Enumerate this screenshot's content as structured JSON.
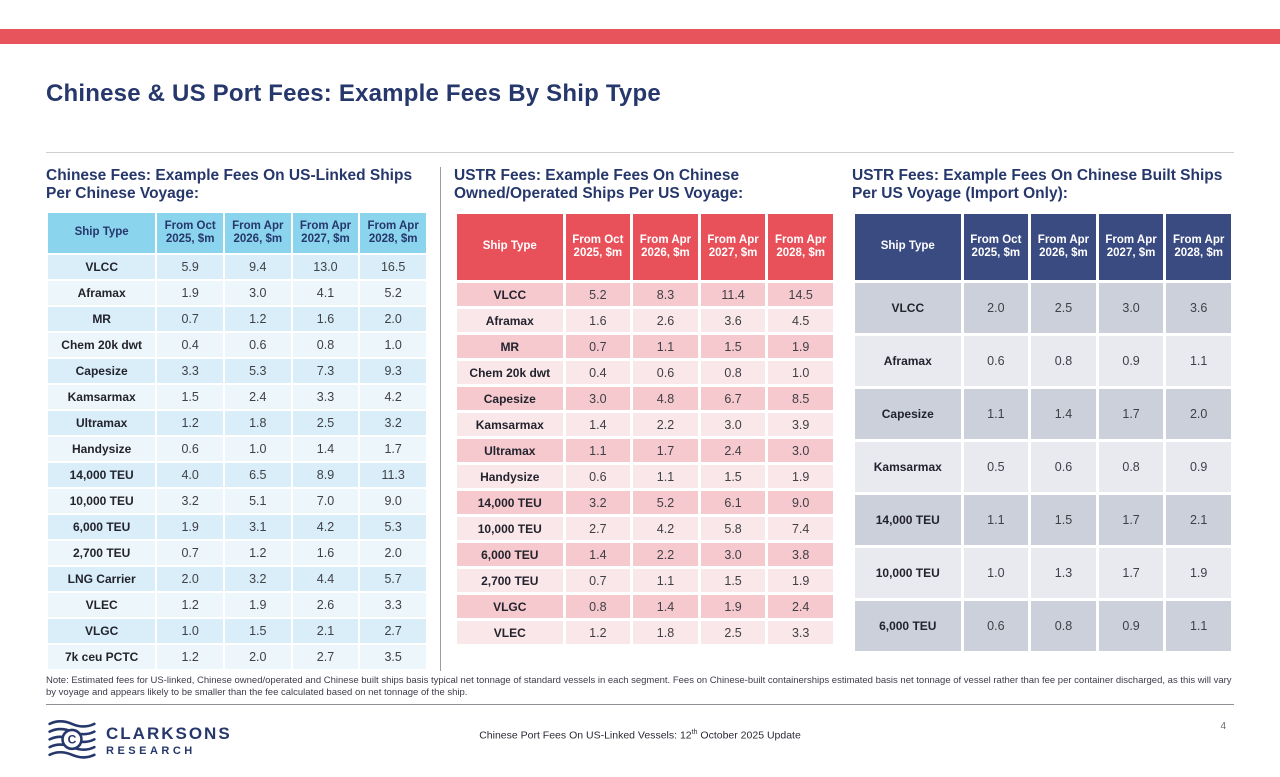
{
  "page": {
    "title": "Chinese & US Port Fees: Example Fees By Ship Type",
    "page_number": "4",
    "note": "Note: Estimated fees for US-linked, Chinese owned/operated and Chinese built ships basis typical net tonnage of standard vessels in each segment. Fees on Chinese-built containerships estimated basis net tonnage of vessel rather than fee per container discharged, as this will vary by voyage and appears likely to be smaller than the fee calculated based on net tonnage of the ship."
  },
  "colors": {
    "accent_red": "#E8545B",
    "navy": "#26376B",
    "table1_header": "#8BD4EE",
    "table1_row": "#D9EEF8",
    "table1_row_alt": "#EDF6FB",
    "table2_header": "#E8515A",
    "table2_row": "#F5C9CE",
    "table2_row_alt": "#FAE7E9",
    "table3_header": "#3A4B82",
    "table3_row": "#CBD0DB",
    "table3_row_alt": "#E8EAF0"
  },
  "tables": [
    {
      "title": "Chinese Fees: Example Fees On US-Linked Ships Per Chinese Voyage:",
      "theme": "blue",
      "columns": [
        "Ship Type",
        "From Oct 2025, $m",
        "From Apr 2026, $m",
        "From Apr 2027, $m",
        "From Apr 2028, $m"
      ],
      "rows": [
        {
          "ship": "VLCC",
          "values": [
            "5.9",
            "9.4",
            "13.0",
            "16.5"
          ]
        },
        {
          "ship": "Aframax",
          "values": [
            "1.9",
            "3.0",
            "4.1",
            "5.2"
          ]
        },
        {
          "ship": "MR",
          "values": [
            "0.7",
            "1.2",
            "1.6",
            "2.0"
          ]
        },
        {
          "ship": "Chem 20k dwt",
          "values": [
            "0.4",
            "0.6",
            "0.8",
            "1.0"
          ]
        },
        {
          "ship": "Capesize",
          "values": [
            "3.3",
            "5.3",
            "7.3",
            "9.3"
          ]
        },
        {
          "ship": "Kamsarmax",
          "values": [
            "1.5",
            "2.4",
            "3.3",
            "4.2"
          ]
        },
        {
          "ship": "Ultramax",
          "values": [
            "1.2",
            "1.8",
            "2.5",
            "3.2"
          ]
        },
        {
          "ship": "Handysize",
          "values": [
            "0.6",
            "1.0",
            "1.4",
            "1.7"
          ]
        },
        {
          "ship": "14,000 TEU",
          "values": [
            "4.0",
            "6.5",
            "8.9",
            "11.3"
          ]
        },
        {
          "ship": "10,000 TEU",
          "values": [
            "3.2",
            "5.1",
            "7.0",
            "9.0"
          ]
        },
        {
          "ship": "6,000 TEU",
          "values": [
            "1.9",
            "3.1",
            "4.2",
            "5.3"
          ]
        },
        {
          "ship": "2,700 TEU",
          "values": [
            "0.7",
            "1.2",
            "1.6",
            "2.0"
          ]
        },
        {
          "ship": "LNG Carrier",
          "values": [
            "2.0",
            "3.2",
            "4.4",
            "5.7"
          ]
        },
        {
          "ship": "VLEC",
          "values": [
            "1.2",
            "1.9",
            "2.6",
            "3.3"
          ]
        },
        {
          "ship": "VLGC",
          "values": [
            "1.0",
            "1.5",
            "2.1",
            "2.7"
          ]
        },
        {
          "ship": "7k ceu PCTC",
          "values": [
            "1.2",
            "2.0",
            "2.7",
            "3.5"
          ]
        }
      ]
    },
    {
      "title": "USTR Fees: Example Fees On Chinese Owned/Operated Ships Per US Voyage:",
      "theme": "red",
      "columns": [
        "Ship Type",
        "From Oct 2025, $m",
        "From Apr 2026, $m",
        "From Apr 2027, $m",
        "From Apr 2028, $m"
      ],
      "rows": [
        {
          "ship": "VLCC",
          "values": [
            "5.2",
            "8.3",
            "11.4",
            "14.5"
          ]
        },
        {
          "ship": "Aframax",
          "values": [
            "1.6",
            "2.6",
            "3.6",
            "4.5"
          ]
        },
        {
          "ship": "MR",
          "values": [
            "0.7",
            "1.1",
            "1.5",
            "1.9"
          ]
        },
        {
          "ship": "Chem 20k dwt",
          "values": [
            "0.4",
            "0.6",
            "0.8",
            "1.0"
          ]
        },
        {
          "ship": "Capesize",
          "values": [
            "3.0",
            "4.8",
            "6.7",
            "8.5"
          ]
        },
        {
          "ship": "Kamsarmax",
          "values": [
            "1.4",
            "2.2",
            "3.0",
            "3.9"
          ]
        },
        {
          "ship": "Ultramax",
          "values": [
            "1.1",
            "1.7",
            "2.4",
            "3.0"
          ]
        },
        {
          "ship": "Handysize",
          "values": [
            "0.6",
            "1.1",
            "1.5",
            "1.9"
          ]
        },
        {
          "ship": "14,000 TEU",
          "values": [
            "3.2",
            "5.2",
            "6.1",
            "9.0"
          ]
        },
        {
          "ship": "10,000 TEU",
          "values": [
            "2.7",
            "4.2",
            "5.8",
            "7.4"
          ]
        },
        {
          "ship": "6,000 TEU",
          "values": [
            "1.4",
            "2.2",
            "3.0",
            "3.8"
          ]
        },
        {
          "ship": "2,700 TEU",
          "values": [
            "0.7",
            "1.1",
            "1.5",
            "1.9"
          ]
        },
        {
          "ship": "VLGC",
          "values": [
            "0.8",
            "1.4",
            "1.9",
            "2.4"
          ]
        },
        {
          "ship": "VLEC",
          "values": [
            "1.2",
            "1.8",
            "2.5",
            "3.3"
          ]
        }
      ]
    },
    {
      "title": "USTR Fees: Example Fees On Chinese Built Ships Per US Voyage (Import Only):",
      "theme": "navy",
      "columns": [
        "Ship Type",
        "From Oct 2025, $m",
        "From Apr 2026, $m",
        "From Apr 2027, $m",
        "From Apr 2028, $m"
      ],
      "rows": [
        {
          "ship": "VLCC",
          "values": [
            "2.0",
            "2.5",
            "3.0",
            "3.6"
          ]
        },
        {
          "ship": "Aframax",
          "values": [
            "0.6",
            "0.8",
            "0.9",
            "1.1"
          ]
        },
        {
          "ship": "Capesize",
          "values": [
            "1.1",
            "1.4",
            "1.7",
            "2.0"
          ]
        },
        {
          "ship": "Kamsarmax",
          "values": [
            "0.5",
            "0.6",
            "0.8",
            "0.9"
          ]
        },
        {
          "ship": "14,000 TEU",
          "values": [
            "1.1",
            "1.5",
            "1.7",
            "2.1"
          ]
        },
        {
          "ship": "10,000 TEU",
          "values": [
            "1.0",
            "1.3",
            "1.7",
            "1.9"
          ]
        },
        {
          "ship": "6,000 TEU",
          "values": [
            "0.6",
            "0.8",
            "0.9",
            "1.1"
          ]
        }
      ]
    }
  ],
  "footer": {
    "brand_line1": "CLARKSONS",
    "brand_line2": "RESEARCH",
    "center_pre": "Chinese Port Fees On US-Linked Vessels: 12",
    "center_sup": "th",
    "center_post": " October 2025 Update"
  }
}
